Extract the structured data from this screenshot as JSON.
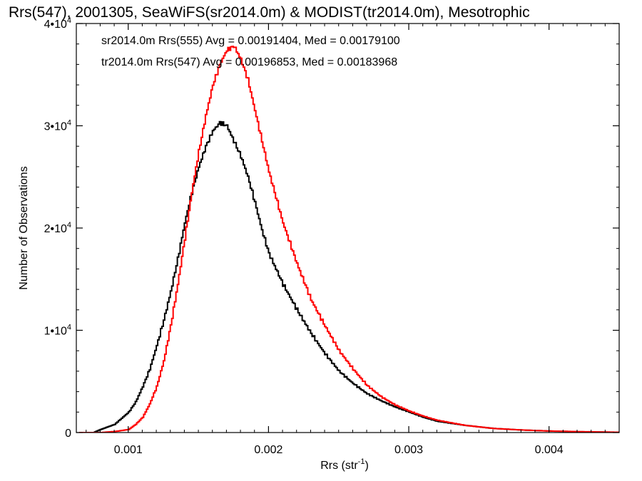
{
  "chart_data": {
    "type": "line",
    "title": "Rrs(547), 2001305, SeaWiFS(sr2014.0m) & MODIST(tr2014.0m), Mesotrophic",
    "xlabel": "Rrs (str",
    "xlabel_sup": "-1",
    "xlabel_close": ")",
    "ylabel": "Number of Observations",
    "xlim": [
      0.00063,
      0.0045
    ],
    "ylim": [
      0,
      40000
    ],
    "x_ticks": [
      {
        "value": 0.001,
        "label": "0.001"
      },
      {
        "value": 0.002,
        "label": "0.002"
      },
      {
        "value": 0.003,
        "label": "0.003"
      },
      {
        "value": 0.004,
        "label": "0.004"
      }
    ],
    "y_ticks": [
      {
        "value": 0,
        "label": "0",
        "sup": ""
      },
      {
        "value": 10000,
        "label": "1•10",
        "sup": "4"
      },
      {
        "value": 20000,
        "label": "2•10",
        "sup": "4"
      },
      {
        "value": 30000,
        "label": "3•10",
        "sup": "4"
      },
      {
        "value": 40000,
        "label": "4•10",
        "sup": "4"
      }
    ],
    "step_shape": "histogram",
    "legend_placement": "top-left",
    "series": [
      {
        "name": "sr2014.0m Rrs(555)",
        "stats": "sr2014.0m Rrs(555) Avg = 0.00191404, Med = 0.00179100",
        "color": "#000000",
        "x": [
          0.00065,
          0.00075,
          0.0008,
          0.0009,
          0.001,
          0.00105,
          0.0011,
          0.00115,
          0.0012,
          0.00125,
          0.0013,
          0.00135,
          0.0014,
          0.00145,
          0.0015,
          0.00155,
          0.0016,
          0.00165,
          0.0017,
          0.00175,
          0.0018,
          0.00185,
          0.0019,
          0.00195,
          0.002,
          0.0021,
          0.0022,
          0.0023,
          0.0024,
          0.0025,
          0.0026,
          0.0027,
          0.0028,
          0.0029,
          0.003,
          0.0031,
          0.0032,
          0.0034,
          0.0036,
          0.0038,
          0.004,
          0.0042,
          0.0044,
          0.0045
        ],
        "values": [
          0,
          0,
          300,
          800,
          2000,
          3000,
          4500,
          6200,
          8500,
          11000,
          13800,
          17000,
          20500,
          23500,
          26000,
          28000,
          29500,
          30300,
          30000,
          28500,
          27000,
          25000,
          22500,
          19800,
          17500,
          14500,
          12000,
          9700,
          7700,
          6000,
          4800,
          3800,
          3100,
          2500,
          2000,
          1500,
          1100,
          700,
          400,
          250,
          150,
          80,
          40,
          20
        ]
      },
      {
        "name": "tr2014.0m Rrs(547)",
        "stats": "tr2014.0m Rrs(547) Avg = 0.00196853, Med = 0.00183968",
        "color": "#ff0000",
        "x": [
          0.00065,
          0.00075,
          0.0008,
          0.0009,
          0.001,
          0.00105,
          0.0011,
          0.00115,
          0.0012,
          0.00125,
          0.0013,
          0.00135,
          0.0014,
          0.00145,
          0.0015,
          0.00155,
          0.0016,
          0.00165,
          0.0017,
          0.00175,
          0.0018,
          0.00185,
          0.0019,
          0.00195,
          0.002,
          0.0021,
          0.0022,
          0.0023,
          0.0024,
          0.0025,
          0.0026,
          0.0027,
          0.0028,
          0.0029,
          0.003,
          0.0031,
          0.0032,
          0.0034,
          0.0036,
          0.0038,
          0.004,
          0.0042,
          0.0044,
          0.0045
        ],
        "values": [
          0,
          0,
          0,
          100,
          300,
          800,
          1500,
          2800,
          4500,
          7000,
          10500,
          14500,
          19000,
          23500,
          27500,
          31000,
          34000,
          36000,
          37400,
          37800,
          36500,
          34500,
          31500,
          28500,
          25500,
          20500,
          16500,
          13000,
          10400,
          8000,
          6200,
          4600,
          3500,
          2700,
          2100,
          1600,
          1200,
          700,
          400,
          250,
          150,
          90,
          50,
          30
        ]
      }
    ]
  }
}
